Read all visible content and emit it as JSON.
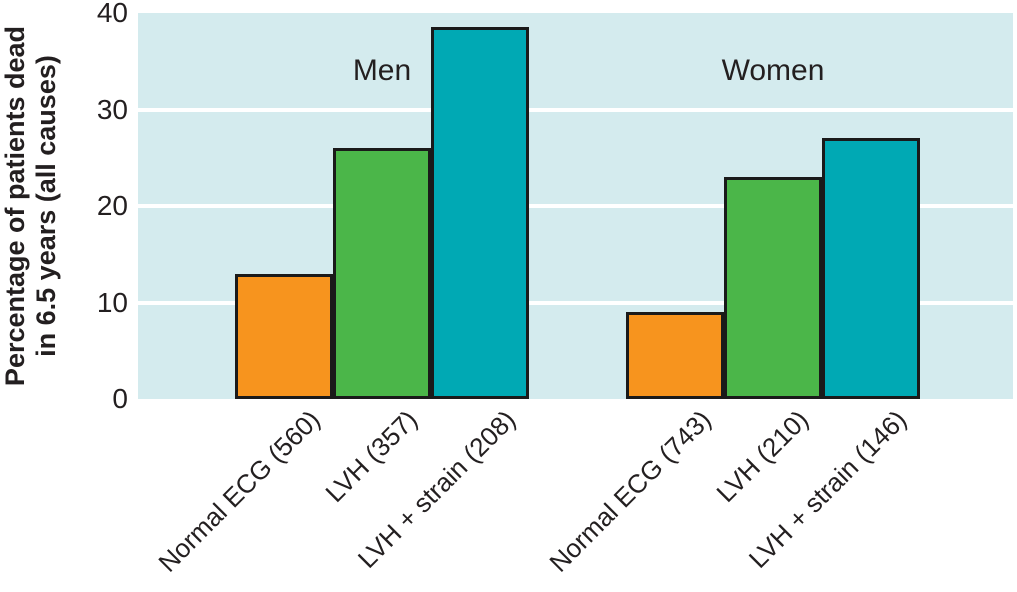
{
  "chart_data": {
    "type": "bar",
    "title": "",
    "xlabel": "",
    "ylabel": "Percentage of patients dead in 6.5 years (all causes)",
    "ylabel_lines": [
      "Percentage of patients dead",
      "in 6.5 years (all causes)"
    ],
    "ylim": [
      0,
      40
    ],
    "yticks": [
      0,
      10,
      20,
      30,
      40
    ],
    "gridlines": [
      10,
      20,
      30
    ],
    "grid": true,
    "legend": "none",
    "plot_background": "#D4EBEE",
    "gridline_color": "#FFFFFF",
    "bar_border_color": "#1A1A1A",
    "text_color": "#231F20",
    "series_colors": [
      "#F7941E",
      "#4BB649",
      "#00A9B4"
    ],
    "groups": [
      {
        "label": "Men",
        "categories": [
          "Normal ECG (560)",
          "LVH (357)",
          "LVH + strain (208)"
        ],
        "values": [
          13,
          26,
          38.5
        ]
      },
      {
        "label": "Women",
        "categories": [
          "Normal ECG (743)",
          "LVH (210)",
          "LVH + strain (146)"
        ],
        "values": [
          9,
          23,
          27
        ]
      }
    ]
  }
}
